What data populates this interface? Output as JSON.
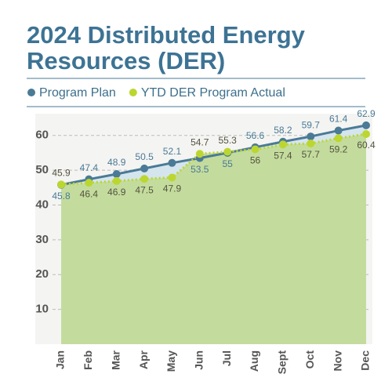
{
  "chart_data": {
    "type": "line",
    "title": "2024 Distributed Energy Resources (DER)",
    "categories": [
      "Jan",
      "Feb",
      "Mar",
      "Apr",
      "May",
      "Jun",
      "Jul",
      "Aug",
      "Sept",
      "Oct",
      "Nov",
      "Dec"
    ],
    "series": [
      {
        "name": "Program Plan",
        "color": "#4a7a96",
        "values": [
          45.8,
          47.4,
          48.9,
          50.5,
          52.1,
          53.5,
          55,
          56.6,
          58.2,
          59.7,
          61.4,
          62.9
        ]
      },
      {
        "name": "YTD DER Program Actual",
        "color": "#bcd630",
        "values": [
          45.9,
          46.4,
          46.9,
          47.5,
          47.9,
          54.7,
          55.3,
          56,
          57.4,
          57.7,
          59.2,
          60.4
        ]
      }
    ],
    "ylim": [
      0,
      64
    ],
    "yticks": [
      10,
      20,
      30,
      40,
      50,
      60
    ],
    "grid": true
  }
}
